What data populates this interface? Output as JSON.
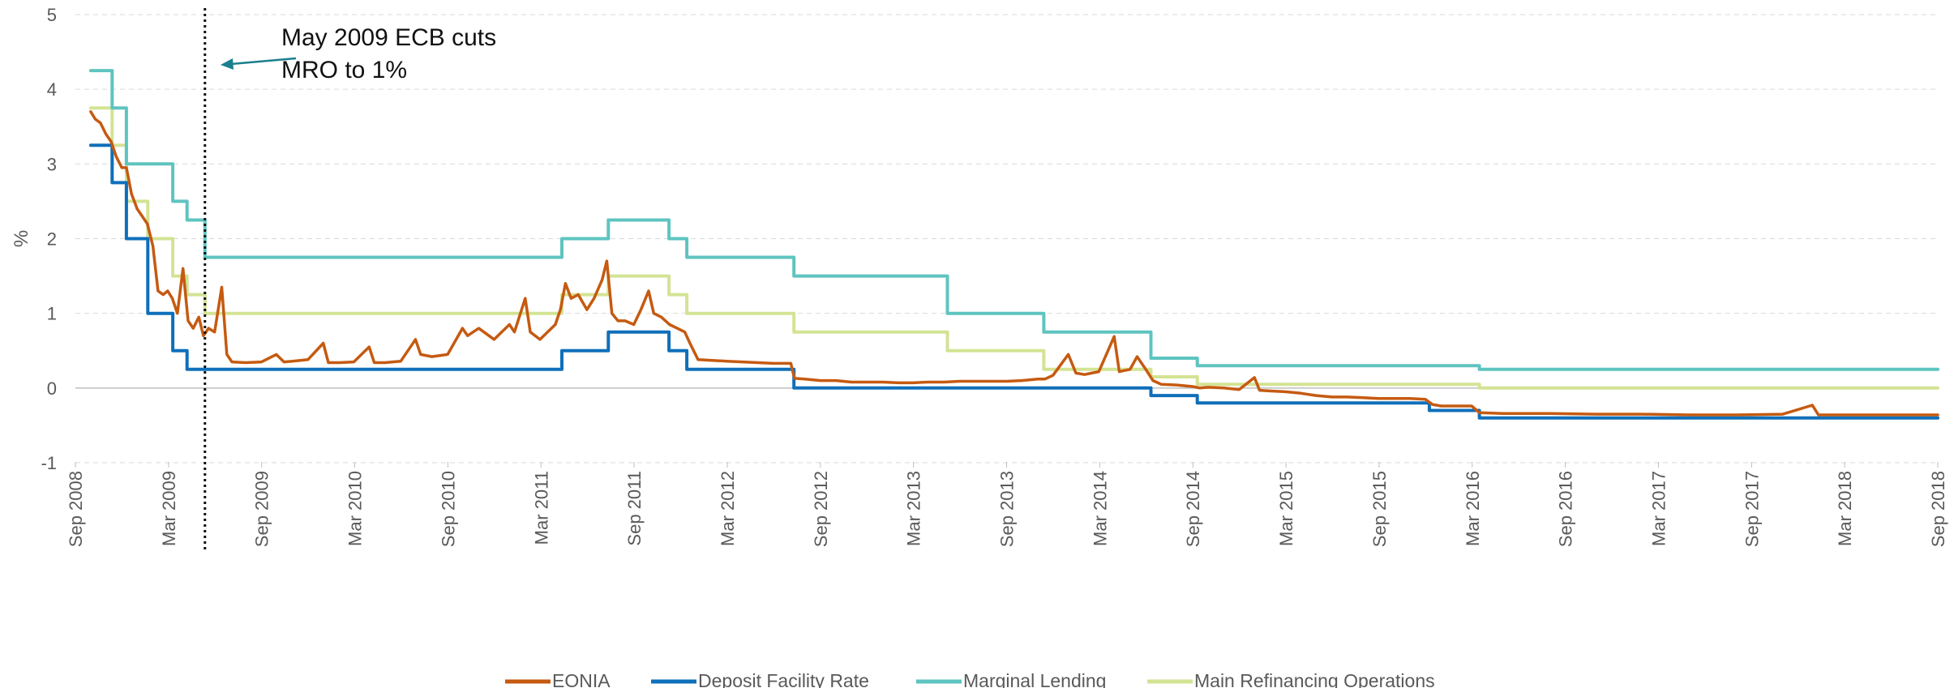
{
  "chart_data": {
    "type": "line",
    "title": "",
    "xlabel": "",
    "ylabel": "%",
    "xlim": [
      "2008-09",
      "2018-09"
    ],
    "ylim": [
      -1,
      5
    ],
    "yticks": [
      -1,
      0,
      1,
      2,
      3,
      4,
      5
    ],
    "xtick_labels": [
      "Sep 2008",
      "Mar 2009",
      "Sep 2009",
      "Mar 2010",
      "Sep 2010",
      "Mar 2011",
      "Sep 2011",
      "Mar 2012",
      "Sep 2012",
      "Mar 2013",
      "Sep 2013",
      "Mar 2014",
      "Sep 2014",
      "Mar 2015",
      "Sep 2015",
      "Mar 2016",
      "Sep 2016",
      "Mar 2017",
      "Sep 2017",
      "Mar 2018",
      "Sep 2018"
    ],
    "grid": "horizontal dashed",
    "legend_position": "bottom",
    "colors": {
      "eonia": "#c55a11",
      "deposit": "#0f6fba",
      "marginal": "#5ec4c0",
      "mro": "#d3e394",
      "annotation": "#1a7f8e",
      "gridline": "#d9d9d9"
    },
    "annotation": {
      "lines": [
        "May 2009 ECB cuts",
        "MRO to 1%"
      ],
      "x": "2009-05-13"
    },
    "series": [
      {
        "name": "EONIA",
        "color": "#c55a11",
        "step": false,
        "points": [
          [
            "2008-10-01",
            3.7
          ],
          [
            "2008-10-10",
            3.6
          ],
          [
            "2008-10-20",
            3.55
          ],
          [
            "2008-10-31",
            3.4
          ],
          [
            "2008-11-10",
            3.3
          ],
          [
            "2008-11-20",
            3.1
          ],
          [
            "2008-12-01",
            2.95
          ],
          [
            "2008-12-10",
            2.95
          ],
          [
            "2008-12-20",
            2.6
          ],
          [
            "2008-12-31",
            2.4
          ],
          [
            "2009-01-10",
            2.3
          ],
          [
            "2009-01-20",
            2.2
          ],
          [
            "2009-01-31",
            1.9
          ],
          [
            "2009-02-10",
            1.3
          ],
          [
            "2009-02-20",
            1.25
          ],
          [
            "2009-03-01",
            1.3
          ],
          [
            "2009-03-10",
            1.2
          ],
          [
            "2009-03-20",
            1.0
          ],
          [
            "2009-03-31",
            1.6
          ],
          [
            "2009-04-10",
            0.9
          ],
          [
            "2009-04-20",
            0.8
          ],
          [
            "2009-05-01",
            0.95
          ],
          [
            "2009-05-10",
            0.7
          ],
          [
            "2009-05-20",
            0.8
          ],
          [
            "2009-06-01",
            0.75
          ],
          [
            "2009-06-15",
            1.35
          ],
          [
            "2009-06-25",
            0.45
          ],
          [
            "2009-07-05",
            0.35
          ],
          [
            "2009-08-01",
            0.34
          ],
          [
            "2009-09-01",
            0.35
          ],
          [
            "2009-09-30",
            0.45
          ],
          [
            "2009-10-15",
            0.35
          ],
          [
            "2009-11-01",
            0.36
          ],
          [
            "2009-12-01",
            0.38
          ],
          [
            "2009-12-31",
            0.6
          ],
          [
            "2010-01-10",
            0.34
          ],
          [
            "2010-02-01",
            0.34
          ],
          [
            "2010-03-01",
            0.35
          ],
          [
            "2010-03-31",
            0.55
          ],
          [
            "2010-04-10",
            0.34
          ],
          [
            "2010-05-01",
            0.34
          ],
          [
            "2010-06-01",
            0.36
          ],
          [
            "2010-06-30",
            0.65
          ],
          [
            "2010-07-10",
            0.45
          ],
          [
            "2010-08-01",
            0.42
          ],
          [
            "2010-09-01",
            0.45
          ],
          [
            "2010-09-30",
            0.8
          ],
          [
            "2010-10-10",
            0.7
          ],
          [
            "2010-11-01",
            0.8
          ],
          [
            "2010-12-01",
            0.65
          ],
          [
            "2010-12-31",
            0.85
          ],
          [
            "2011-01-10",
            0.75
          ],
          [
            "2011-01-31",
            1.2
          ],
          [
            "2011-02-10",
            0.75
          ],
          [
            "2011-03-01",
            0.65
          ],
          [
            "2011-03-31",
            0.85
          ],
          [
            "2011-04-10",
            1.05
          ],
          [
            "2011-04-20",
            1.4
          ],
          [
            "2011-05-01",
            1.2
          ],
          [
            "2011-05-15",
            1.25
          ],
          [
            "2011-06-01",
            1.05
          ],
          [
            "2011-06-15",
            1.2
          ],
          [
            "2011-07-01",
            1.45
          ],
          [
            "2011-07-10",
            1.7
          ],
          [
            "2011-07-20",
            1.0
          ],
          [
            "2011-08-01",
            0.9
          ],
          [
            "2011-08-15",
            0.9
          ],
          [
            "2011-09-01",
            0.85
          ],
          [
            "2011-09-15",
            1.05
          ],
          [
            "2011-09-30",
            1.3
          ],
          [
            "2011-10-10",
            1.0
          ],
          [
            "2011-10-25",
            0.95
          ],
          [
            "2011-11-10",
            0.85
          ],
          [
            "2011-11-25",
            0.8
          ],
          [
            "2011-12-10",
            0.75
          ],
          [
            "2011-12-20",
            0.6
          ],
          [
            "2012-01-05",
            0.38
          ],
          [
            "2012-02-01",
            0.37
          ],
          [
            "2012-03-01",
            0.36
          ],
          [
            "2012-04-01",
            0.35
          ],
          [
            "2012-05-01",
            0.34
          ],
          [
            "2012-06-01",
            0.33
          ],
          [
            "2012-07-05",
            0.33
          ],
          [
            "2012-07-12",
            0.13
          ],
          [
            "2012-08-01",
            0.12
          ],
          [
            "2012-09-01",
            0.1
          ],
          [
            "2012-10-01",
            0.1
          ],
          [
            "2012-11-01",
            0.08
          ],
          [
            "2012-12-01",
            0.08
          ],
          [
            "2013-01-01",
            0.08
          ],
          [
            "2013-02-01",
            0.07
          ],
          [
            "2013-03-01",
            0.07
          ],
          [
            "2013-04-01",
            0.08
          ],
          [
            "2013-05-01",
            0.08
          ],
          [
            "2013-06-01",
            0.09
          ],
          [
            "2013-07-01",
            0.09
          ],
          [
            "2013-08-01",
            0.09
          ],
          [
            "2013-09-01",
            0.09
          ],
          [
            "2013-10-01",
            0.1
          ],
          [
            "2013-11-01",
            0.12
          ],
          [
            "2013-11-15",
            0.12
          ],
          [
            "2013-12-01",
            0.17
          ],
          [
            "2013-12-31",
            0.45
          ],
          [
            "2014-01-15",
            0.2
          ],
          [
            "2014-02-01",
            0.18
          ],
          [
            "2014-02-15",
            0.2
          ],
          [
            "2014-03-01",
            0.22
          ],
          [
            "2014-03-31",
            0.69
          ],
          [
            "2014-04-10",
            0.22
          ],
          [
            "2014-05-01",
            0.25
          ],
          [
            "2014-05-15",
            0.42
          ],
          [
            "2014-06-01",
            0.25
          ],
          [
            "2014-06-15",
            0.1
          ],
          [
            "2014-07-01",
            0.05
          ],
          [
            "2014-08-01",
            0.04
          ],
          [
            "2014-09-01",
            0.02
          ],
          [
            "2014-09-15",
            0.0
          ],
          [
            "2014-10-01",
            0.01
          ],
          [
            "2014-11-01",
            0.0
          ],
          [
            "2014-12-01",
            -0.02
          ],
          [
            "2014-12-31",
            0.14
          ],
          [
            "2015-01-10",
            -0.03
          ],
          [
            "2015-02-01",
            -0.04
          ],
          [
            "2015-03-01",
            -0.05
          ],
          [
            "2015-04-01",
            -0.07
          ],
          [
            "2015-05-01",
            -0.1
          ],
          [
            "2015-06-01",
            -0.12
          ],
          [
            "2015-07-01",
            -0.12
          ],
          [
            "2015-08-01",
            -0.13
          ],
          [
            "2015-09-01",
            -0.14
          ],
          [
            "2015-10-01",
            -0.14
          ],
          [
            "2015-11-01",
            -0.14
          ],
          [
            "2015-12-01",
            -0.15
          ],
          [
            "2015-12-15",
            -0.22
          ],
          [
            "2016-01-01",
            -0.24
          ],
          [
            "2016-02-01",
            -0.24
          ],
          [
            "2016-03-01",
            -0.24
          ],
          [
            "2016-03-16",
            -0.33
          ],
          [
            "2016-05-01",
            -0.34
          ],
          [
            "2016-08-01",
            -0.34
          ],
          [
            "2016-11-01",
            -0.35
          ],
          [
            "2017-02-01",
            -0.35
          ],
          [
            "2017-05-01",
            -0.36
          ],
          [
            "2017-08-01",
            -0.36
          ],
          [
            "2017-11-01",
            -0.35
          ],
          [
            "2017-12-29",
            -0.23
          ],
          [
            "2018-01-10",
            -0.36
          ],
          [
            "2018-04-01",
            -0.36
          ],
          [
            "2018-07-01",
            -0.36
          ],
          [
            "2018-09-01",
            -0.36
          ]
        ]
      },
      {
        "name": "Deposit Facility Rate",
        "color": "#0f6fba",
        "step": true,
        "points": [
          [
            "2008-10-01",
            3.25
          ],
          [
            "2008-11-12",
            2.75
          ],
          [
            "2008-12-10",
            2.0
          ],
          [
            "2009-01-21",
            1.0
          ],
          [
            "2009-03-11",
            0.5
          ],
          [
            "2009-04-08",
            0.25
          ],
          [
            "2011-04-13",
            0.5
          ],
          [
            "2011-07-13",
            0.75
          ],
          [
            "2011-11-09",
            0.5
          ],
          [
            "2011-12-14",
            0.25
          ],
          [
            "2012-07-11",
            0.0
          ],
          [
            "2014-06-11",
            -0.1
          ],
          [
            "2014-09-10",
            -0.2
          ],
          [
            "2015-12-09",
            -0.3
          ],
          [
            "2016-03-16",
            -0.4
          ],
          [
            "2018-09-01",
            -0.4
          ]
        ]
      },
      {
        "name": "Marginal Lending",
        "color": "#5ec4c0",
        "step": true,
        "points": [
          [
            "2008-10-01",
            4.25
          ],
          [
            "2008-11-12",
            3.75
          ],
          [
            "2008-12-10",
            3.0
          ],
          [
            "2009-03-11",
            2.5
          ],
          [
            "2009-04-08",
            2.25
          ],
          [
            "2009-05-13",
            1.75
          ],
          [
            "2011-04-13",
            2.0
          ],
          [
            "2011-07-13",
            2.25
          ],
          [
            "2011-11-09",
            2.0
          ],
          [
            "2011-12-14",
            1.75
          ],
          [
            "2012-07-11",
            1.5
          ],
          [
            "2013-05-08",
            1.0
          ],
          [
            "2013-11-13",
            0.75
          ],
          [
            "2014-06-11",
            0.4
          ],
          [
            "2014-09-10",
            0.3
          ],
          [
            "2016-03-16",
            0.25
          ],
          [
            "2018-09-01",
            0.25
          ]
        ]
      },
      {
        "name": "Main Refinancing Operations",
        "color": "#d3e394",
        "step": true,
        "points": [
          [
            "2008-10-01",
            3.75
          ],
          [
            "2008-11-12",
            3.25
          ],
          [
            "2008-12-10",
            2.5
          ],
          [
            "2009-01-21",
            2.0
          ],
          [
            "2009-03-11",
            1.5
          ],
          [
            "2009-04-08",
            1.25
          ],
          [
            "2009-05-13",
            1.0
          ],
          [
            "2011-04-13",
            1.25
          ],
          [
            "2011-07-13",
            1.5
          ],
          [
            "2011-11-09",
            1.25
          ],
          [
            "2011-12-14",
            1.0
          ],
          [
            "2012-07-11",
            0.75
          ],
          [
            "2013-05-08",
            0.5
          ],
          [
            "2013-11-13",
            0.25
          ],
          [
            "2014-06-11",
            0.15
          ],
          [
            "2014-09-10",
            0.05
          ],
          [
            "2016-03-16",
            0.0
          ],
          [
            "2018-09-01",
            0.0
          ]
        ]
      }
    ]
  }
}
